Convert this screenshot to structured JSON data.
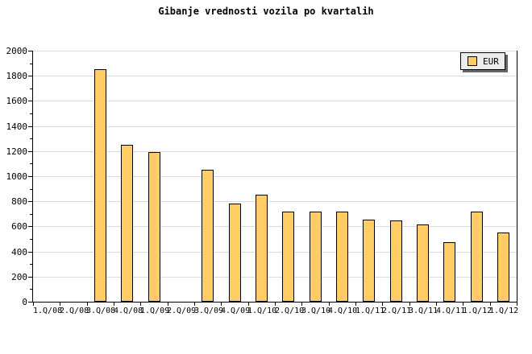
{
  "chart_data": {
    "type": "bar",
    "title": "Gibanje vrednosti vozila po kvartalih",
    "categories": [
      "1.Q/08",
      "2.Q/08",
      "3.Q/08",
      "4.Q/08",
      "1.Q/09",
      "2.Q/09",
      "3.Q/09",
      "4.Q/09",
      "1.Q/10",
      "2.Q/10",
      "3.Q/10",
      "4.Q/10",
      "1.Q/11",
      "2.Q/11",
      "3.Q/11",
      "4.Q/11",
      "1.Q/12",
      "1.Q/12"
    ],
    "series": [
      {
        "name": "EUR",
        "values": [
          null,
          null,
          1850,
          1250,
          1190,
          null,
          1050,
          785,
          855,
          715,
          720,
          720,
          655,
          650,
          615,
          475,
          715,
          550
        ]
      }
    ],
    "xlabel": "",
    "ylabel": "",
    "ylim": [
      0,
      2000
    ],
    "y_major_ticks": [
      0,
      200,
      400,
      600,
      800,
      1000,
      1200,
      1400,
      1600,
      1800,
      2000
    ],
    "y_minor_step": 100,
    "grid": "horizontal",
    "legend_position": "top-right"
  },
  "legend": {
    "label": "EUR"
  },
  "colors": {
    "bar_fill": "#FFCC66",
    "bar_border": "#000000",
    "gridline": "#DCDCDC",
    "axis": "#000000",
    "legend_bg": "#ECECEC",
    "legend_shadow": "#666666",
    "background": "#FFFFFF",
    "text": "#000000"
  }
}
